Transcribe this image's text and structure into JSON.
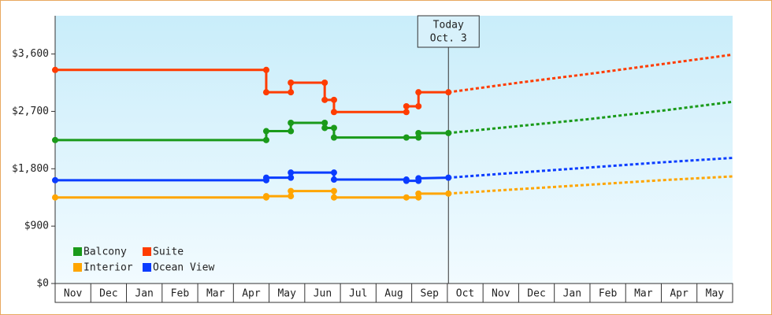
{
  "chart_data": {
    "type": "step-line",
    "categories": [
      "Nov",
      "Dec",
      "Jan",
      "Feb",
      "Mar",
      "Apr",
      "May",
      "Jun",
      "Jul",
      "Aug",
      "Sep",
      "Oct",
      "Nov",
      "Dec",
      "Jan",
      "Feb",
      "Mar",
      "Apr",
      "May"
    ],
    "xlim": [
      0,
      19
    ],
    "ylim": [
      0,
      4200
    ],
    "yticks": [
      {
        "value": 0,
        "label": "$0"
      },
      {
        "value": 900,
        "label": "$900"
      },
      {
        "value": 1800,
        "label": "$1,800"
      },
      {
        "value": 2700,
        "label": "$2,700"
      },
      {
        "value": 3600,
        "label": "$3,600"
      }
    ],
    "legend": "bottom-left",
    "today": {
      "label": "Today",
      "date": "Oct. 3",
      "x": 11.03
    },
    "series": [
      {
        "name": "Balcony",
        "color": "#1a9a1a",
        "x": [
          0,
          5.92,
          5.92,
          6.61,
          6.61,
          7.56,
          7.56,
          7.82,
          7.82,
          9.85,
          10.19,
          10.19,
          11.03
        ],
        "values": [
          2250,
          2250,
          2390,
          2390,
          2520,
          2520,
          2440,
          2440,
          2290,
          2290,
          2290,
          2360,
          2360
        ],
        "forecast_x": [
          11.03,
          13,
          15,
          17,
          19
        ],
        "forecast_values": [
          2360,
          2470,
          2580,
          2710,
          2850
        ]
      },
      {
        "name": "Suite",
        "color": "#ff3c00",
        "x": [
          0,
          5.92,
          5.92,
          6.61,
          6.61,
          7.56,
          7.56,
          7.82,
          7.82,
          9.85,
          9.85,
          10.19,
          10.19,
          11.03
        ],
        "values": [
          3350,
          3350,
          3000,
          3000,
          3150,
          3150,
          2880,
          2880,
          2690,
          2690,
          2780,
          2780,
          3000,
          3000
        ],
        "forecast_x": [
          11.03,
          13,
          15,
          17,
          19
        ],
        "forecast_values": [
          3000,
          3150,
          3290,
          3440,
          3590
        ]
      },
      {
        "name": "Interior",
        "color": "#ffa500",
        "x": [
          0,
          5.92,
          5.92,
          6.61,
          6.61,
          7.82,
          7.82,
          9.85,
          10.19,
          10.19,
          11.03
        ],
        "values": [
          1350,
          1350,
          1370,
          1370,
          1450,
          1450,
          1350,
          1350,
          1350,
          1410,
          1410
        ],
        "forecast_x": [
          11.03,
          13,
          15,
          17,
          19
        ],
        "forecast_values": [
          1410,
          1480,
          1550,
          1620,
          1680
        ]
      },
      {
        "name": "Ocean View",
        "color": "#0a3cff",
        "x": [
          0,
          5.92,
          5.92,
          6.61,
          6.61,
          7.82,
          7.82,
          9.85,
          9.85,
          10.19,
          10.19,
          11.03
        ],
        "values": [
          1620,
          1620,
          1660,
          1660,
          1740,
          1740,
          1630,
          1630,
          1610,
          1610,
          1650,
          1660
        ],
        "forecast_x": [
          11.03,
          13,
          15,
          17,
          19
        ],
        "forecast_values": [
          1660,
          1740,
          1820,
          1900,
          1970
        ]
      }
    ]
  }
}
